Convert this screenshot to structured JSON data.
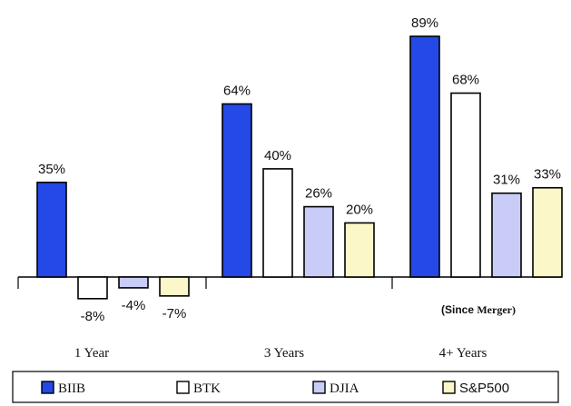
{
  "chart_data": {
    "type": "bar",
    "title": "",
    "xlabel": "",
    "ylabel": "",
    "ylim": [
      -10,
      95
    ],
    "grid": false,
    "legend_position": "bottom",
    "categories": [
      "1 Year",
      "3 Years",
      "4+ Years"
    ],
    "category_note": {
      "category": "4+ Years",
      "prefix": "(Since ",
      "suffix": "Merger)"
    },
    "series": [
      {
        "name": "BIIB",
        "color": "#2449e6",
        "values": [
          35,
          64,
          89
        ],
        "labels": [
          "35%",
          "64%",
          "89%"
        ]
      },
      {
        "name": "BTK",
        "color": "#ffffff",
        "values": [
          -8,
          40,
          68
        ],
        "labels": [
          "-8%",
          "40%",
          "68%"
        ]
      },
      {
        "name": "DJIA",
        "color": "#c9ccf7",
        "values": [
          -4,
          26,
          31
        ],
        "labels": [
          "-4%",
          "26%",
          "31%"
        ]
      },
      {
        "name": "S&P500",
        "color": "#fbf7c8",
        "values": [
          -7,
          20,
          33
        ],
        "labels": [
          "-7%",
          "20%",
          "33%"
        ]
      }
    ]
  }
}
